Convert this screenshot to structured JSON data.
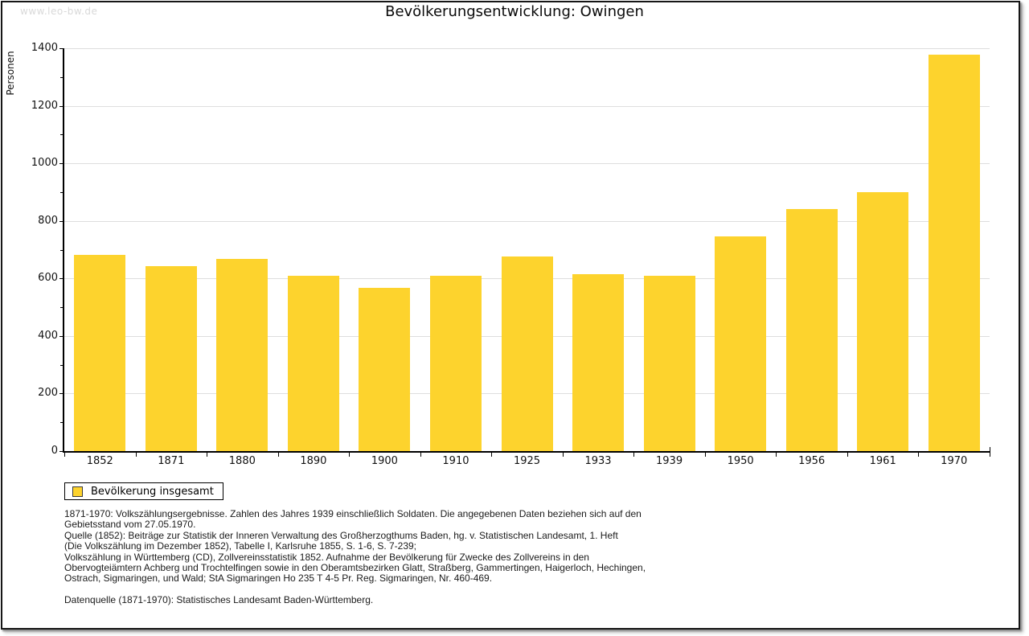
{
  "watermark": "www.leo-bw.de",
  "title": "Bevölkerungsentwicklung: Owingen",
  "chart_data": {
    "type": "bar",
    "title": "Bevölkerungsentwicklung: Owingen",
    "xlabel": "",
    "ylabel": "Personen",
    "categories": [
      "1852",
      "1871",
      "1880",
      "1890",
      "1900",
      "1910",
      "1925",
      "1933",
      "1939",
      "1950",
      "1956",
      "1961",
      "1970"
    ],
    "series": [
      {
        "name": "Bevölkerung insgesamt",
        "color": "#FDD32D",
        "values": [
          682,
          643,
          668,
          610,
          567,
          610,
          676,
          614,
          609,
          746,
          842,
          899,
          1378
        ]
      }
    ],
    "ylim": [
      0,
      1400
    ],
    "yticks": [
      0,
      200,
      400,
      600,
      800,
      1000,
      1200,
      1400
    ],
    "minor_ytick_step": 100,
    "grid": true,
    "legend_position": "bottom-left"
  },
  "legend": {
    "items": [
      {
        "label": "Bevölkerung insgesamt",
        "color": "#FDD32D"
      }
    ]
  },
  "footnotes": "1871-1970: Volkszählungsergebnisse. Zahlen des Jahres 1939 einschließlich Soldaten. Die angegebenen Daten beziehen sich auf den\nGebietsstand vom 27.05.1970.\nQuelle (1852): Beiträge zur Statistik der Inneren Verwaltung des Großherzogthums Baden, hg. v. Statistischen Landesamt, 1. Heft\n(Die Volkszählung im Dezember 1852), Tabelle I, Karlsruhe 1855, S. 1-6, S. 7-239;\nVolkszählung in Württemberg (CD), Zollvereinsstatistik 1852. Aufnahme der Bevölkerung für Zwecke des Zollvereins in den\nObervogteiämtern Achberg und Trochtelfingen sowie in den Oberamtsbezirken Glatt, Straßberg, Gammertingen, Haigerloch, Hechingen,\nOstrach, Sigmaringen, und Wald; StA Sigmaringen Ho 235 T 4-5 Pr. Reg. Sigmaringen, Nr. 460-469.\n\nDatenquelle (1871-1970): Statistisches Landesamt Baden-Württemberg.",
  "colors": {
    "bar": "#FDD32D",
    "gridline": "#dedede",
    "axis": "#000000",
    "watermark": "#d9d9d9"
  }
}
